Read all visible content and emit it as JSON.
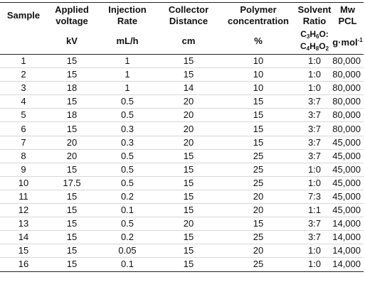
{
  "header": {
    "sample": "Sample",
    "voltage": [
      "Applied",
      "voltage"
    ],
    "rate": [
      "Injection",
      "Rate"
    ],
    "distance": [
      "Collector",
      "Distance"
    ],
    "concentration": [
      "Polymer",
      "concentration"
    ],
    "solvent": [
      "Solvent",
      "Ratio"
    ],
    "mw": [
      "Mw",
      "PCL"
    ]
  },
  "units": {
    "sample": "",
    "voltage": "kV",
    "rate": "mL/h",
    "distance": "cm",
    "concentration": "%",
    "solvent_line1": {
      "c": "C",
      "c_n": "3",
      "h": "H",
      "h_n": "6",
      "o": "O:"
    },
    "solvent_line2": {
      "c": "C",
      "c_n": "4",
      "h": "H",
      "h_n": "8",
      "o": "O",
      "o_n": "2"
    },
    "mw_base": "g·mol",
    "mw_exp": "-1"
  },
  "rows": [
    [
      "1",
      "15",
      "1",
      "15",
      "10",
      "1:0",
      "80,000"
    ],
    [
      "2",
      "15",
      "1",
      "15",
      "10",
      "1:0",
      "80,000"
    ],
    [
      "3",
      "18",
      "1",
      "14",
      "10",
      "1:0",
      "80,000"
    ],
    [
      "4",
      "15",
      "0.5",
      "20",
      "15",
      "3:7",
      "80,000"
    ],
    [
      "5",
      "18",
      "0.5",
      "20",
      "15",
      "3:7",
      "80,000"
    ],
    [
      "6",
      "15",
      "0.3",
      "20",
      "15",
      "3:7",
      "80,000"
    ],
    [
      "7",
      "20",
      "0.3",
      "20",
      "15",
      "3:7",
      "45,000"
    ],
    [
      "8",
      "20",
      "0.5",
      "15",
      "25",
      "3:7",
      "45,000"
    ],
    [
      "9",
      "15",
      "0.5",
      "15",
      "25",
      "1:0",
      "45,000"
    ],
    [
      "10",
      "17.5",
      "0.5",
      "15",
      "25",
      "1:0",
      "45,000"
    ],
    [
      "11",
      "15",
      "0.2",
      "15",
      "20",
      "7:3",
      "45,000"
    ],
    [
      "12",
      "15",
      "0.1",
      "15",
      "20",
      "1:1",
      "45,000"
    ],
    [
      "13",
      "15",
      "0.5",
      "20",
      "15",
      "3:7",
      "14,000"
    ],
    [
      "14",
      "15",
      "0.2",
      "15",
      "25",
      "3:7",
      "14,000"
    ],
    [
      "15",
      "15",
      "0.05",
      "15",
      "20",
      "1:0",
      "14,000"
    ],
    [
      "16",
      "15",
      "0.1",
      "15",
      "25",
      "1:0",
      "14,000"
    ]
  ]
}
